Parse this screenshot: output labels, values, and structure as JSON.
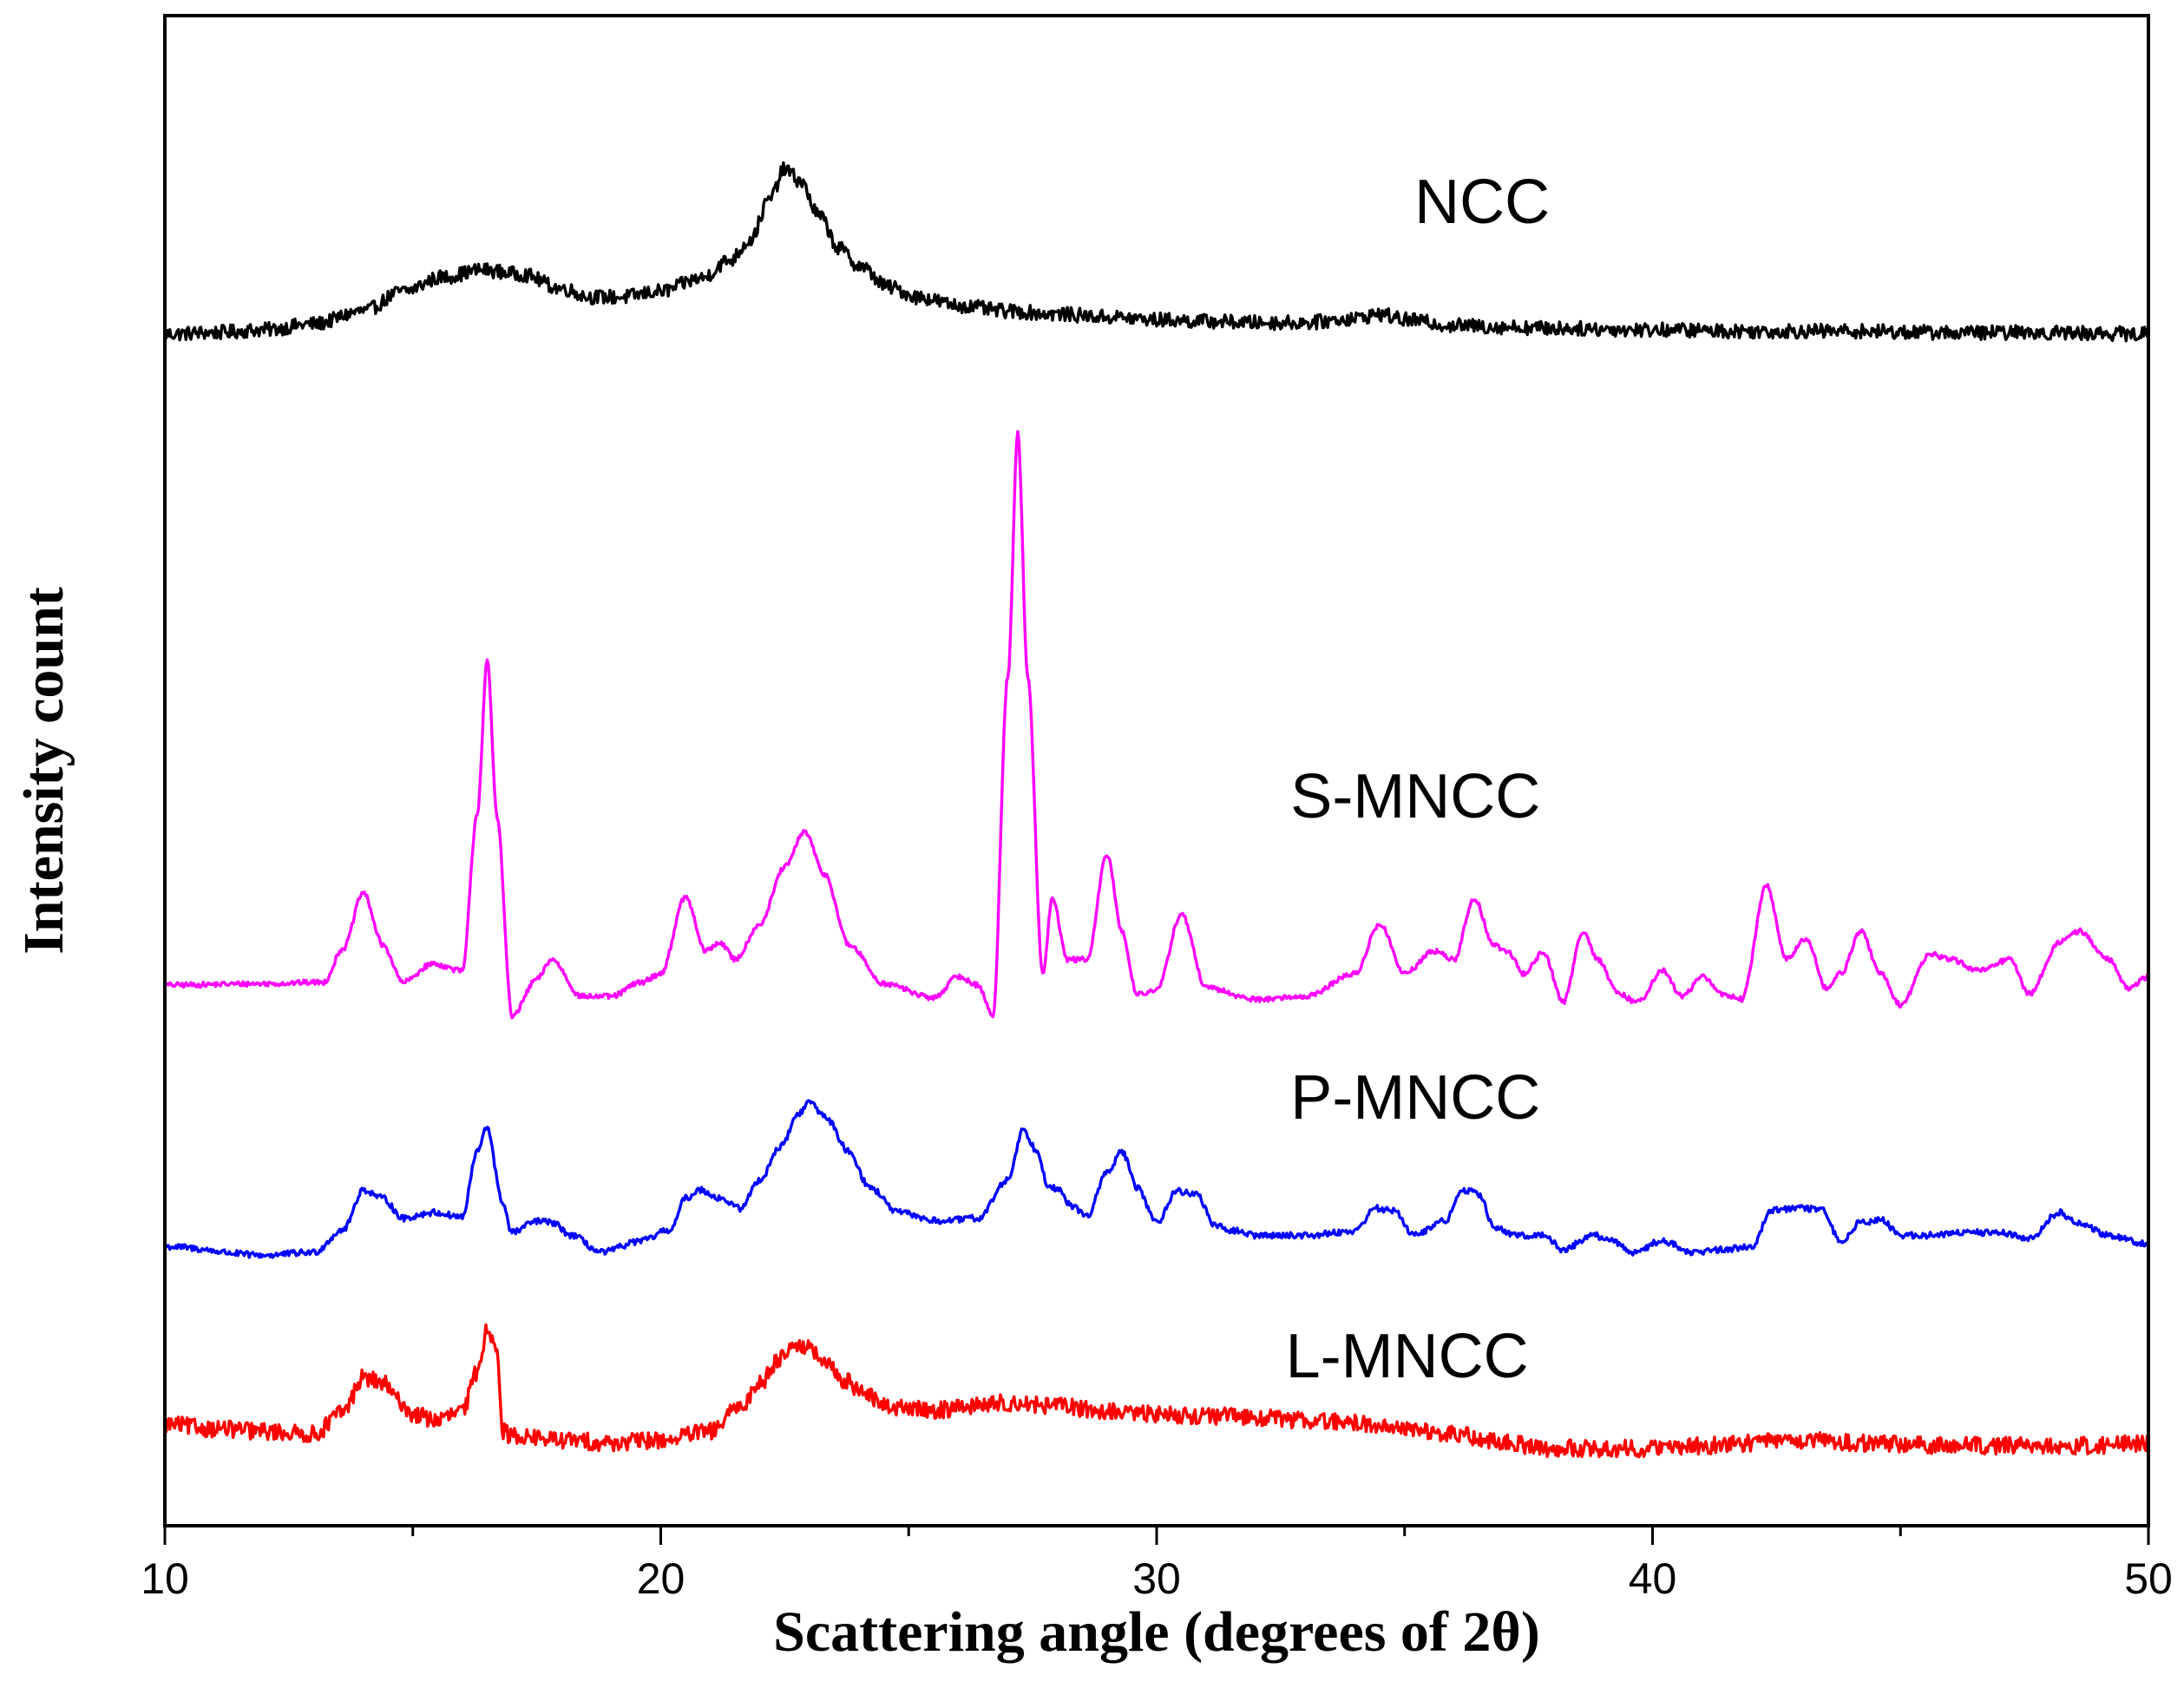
{
  "chart_data": {
    "type": "line",
    "title": "",
    "xlabel": "Scattering angle (degrees of 2θ)",
    "ylabel": "Intensity count",
    "xlim": [
      10,
      50
    ],
    "ylim": [
      0,
      100
    ],
    "x_ticks": [
      10,
      20,
      30,
      40,
      50
    ],
    "x_ticks_labeled": [
      "10",
      "20",
      "30",
      "40",
      "50"
    ],
    "x_minor_step": 5,
    "y_ticks": [],
    "grid": false,
    "legend": "none; series labeled inline",
    "series": [
      {
        "name": "NCC",
        "color": "#000000",
        "label_pos": [
          35.2,
          89.8
        ],
        "noise": 0.5,
        "x": [
          10.0,
          11.0,
          12.0,
          13.0,
          14.0,
          14.8,
          15.6,
          16.4,
          17.2,
          18.0,
          18.6,
          19.2,
          20.0,
          20.8,
          21.4,
          21.8,
          22.2,
          22.5,
          22.8,
          23.2,
          23.6,
          24.0,
          24.6,
          25.2,
          26.0,
          27.0,
          28.0,
          29.0,
          30.0,
          31.0,
          32.0,
          33.0,
          34.0,
          34.5,
          35.0,
          36.0,
          37.0,
          38.0,
          40.0,
          42.0,
          44.0,
          46.0,
          48.0,
          50.0
        ],
        "y": [
          82.0,
          82.1,
          82.3,
          82.7,
          83.6,
          85.0,
          86.0,
          86.5,
          86.2,
          85.2,
          84.6,
          84.6,
          85.0,
          85.9,
          87.2,
          88.6,
          91.5,
          93.6,
          92.8,
          90.3,
          88.0,
          86.8,
          85.3,
          84.6,
          84.0,
          83.6,
          83.4,
          83.2,
          83.0,
          82.9,
          82.8,
          82.8,
          83.1,
          83.4,
          83.0,
          82.6,
          82.5,
          82.4,
          82.3,
          82.2,
          82.2,
          82.1,
          82.1,
          82.0
        ]
      },
      {
        "name": "S-MNCC",
        "color": "#ff00ff",
        "label_pos": [
          32.7,
          48.0
        ],
        "noise": 0.18,
        "x": [
          10.0,
          12.0,
          13.2,
          13.6,
          14.0,
          14.4,
          14.8,
          15.4,
          16.0,
          16.3,
          16.5,
          16.7,
          17.0,
          17.5,
          17.8,
          18.4,
          19.0,
          19.6,
          20.0,
          20.5,
          20.9,
          21.2,
          21.5,
          22.0,
          22.5,
          22.9,
          23.3,
          23.8,
          24.5,
          25.5,
          26.0,
          26.4,
          26.7,
          27.0,
          27.2,
          27.4,
          27.7,
          27.9,
          28.2,
          28.6,
          29.0,
          29.3,
          29.6,
          30.0,
          30.5,
          31.0,
          32.0,
          33.0,
          34.0,
          34.5,
          35.0,
          35.6,
          36.0,
          36.4,
          36.8,
          37.1,
          37.4,
          37.8,
          38.2,
          38.6,
          38.9,
          39.3,
          39.7,
          40.2,
          40.6,
          41.0,
          41.4,
          41.8,
          42.3,
          42.7,
          43.1,
          43.5,
          43.8,
          44.2,
          44.6,
          45.0,
          45.6,
          46.0,
          46.6,
          47.2,
          47.6,
          48.2,
          48.6,
          49.2,
          49.6,
          50.0
        ],
        "y": [
          36.2,
          36.3,
          36.4,
          38.8,
          42.7,
          39.0,
          36.4,
          37.7,
          37.2,
          48.3,
          59.0,
          48.0,
          34.0,
          36.6,
          38.0,
          35.4,
          35.4,
          36.4,
          37.0,
          42.4,
          38.6,
          39.2,
          38.0,
          40.5,
          44.5,
          47.0,
          44.0,
          39.0,
          36.3,
          35.3,
          36.8,
          36.2,
          34.0,
          58.0,
          75.0,
          58.0,
          37.0,
          42.3,
          38.0,
          38.0,
          45.4,
          40.0,
          35.6,
          35.8,
          41.2,
          36.0,
          35.2,
          35.4,
          37.0,
          40.5,
          37.0,
          38.6,
          38.0,
          42.3,
          39.0,
          38.5,
          37.0,
          38.5,
          35.0,
          40.0,
          38.0,
          35.6,
          35.0,
          37.2,
          35.4,
          36.8,
          35.6,
          35.2,
          43.2,
          38.0,
          39.5,
          36.0,
          37.0,
          40.0,
          37.0,
          34.8,
          38.4,
          38.0,
          37.2,
          38.0,
          35.6,
          39.2,
          40.0,
          38.0,
          36.0,
          36.8
        ]
      },
      {
        "name": "P-MNCC",
        "color": "#0000ff",
        "label_pos": [
          32.7,
          26.8
        ],
        "noise": 0.22,
        "x": [
          10.0,
          12.0,
          13.0,
          13.6,
          14.0,
          14.4,
          14.8,
          15.4,
          16.0,
          16.3,
          16.5,
          16.8,
          17.0,
          17.5,
          17.8,
          18.2,
          18.8,
          19.6,
          20.2,
          20.5,
          20.8,
          21.2,
          21.6,
          22.0,
          22.4,
          22.8,
          23.0,
          23.3,
          23.8,
          24.2,
          24.8,
          25.6,
          26.4,
          27.0,
          27.3,
          27.6,
          27.8,
          28.0,
          28.3,
          28.6,
          29.0,
          29.3,
          29.6,
          30.0,
          30.4,
          30.8,
          31.2,
          31.6,
          32.0,
          33.0,
          34.0,
          34.4,
          34.8,
          35.2,
          35.8,
          36.2,
          36.5,
          36.8,
          37.2,
          37.8,
          38.2,
          38.8,
          39.2,
          39.6,
          40.2,
          40.8,
          41.4,
          42.0,
          42.4,
          43.0,
          43.4,
          43.8,
          44.2,
          44.6,
          45.0,
          45.6,
          46.2,
          47.0,
          47.6,
          48.2,
          48.6,
          49.2,
          50.0
        ],
        "y": [
          17.8,
          17.2,
          17.4,
          19.0,
          21.8,
          21.2,
          19.8,
          20.2,
          19.9,
          24.5,
          26.2,
          21.0,
          18.8,
          19.6,
          19.5,
          18.6,
          17.4,
          18.2,
          19.0,
          21.2,
          21.8,
          21.2,
          20.5,
          22.5,
          24.8,
          27.2,
          28.0,
          27.0,
          24.5,
          22.0,
          20.2,
          19.6,
          19.8,
          22.5,
          26.0,
          24.5,
          22.2,
          21.8,
          20.6,
          20.0,
          23.0,
          24.5,
          22.0,
          19.5,
          21.7,
          21.5,
          19.2,
          18.9,
          18.6,
          18.6,
          18.9,
          20.5,
          20.3,
          18.6,
          19.6,
          21.8,
          21.5,
          19.2,
          18.6,
          18.6,
          17.6,
          18.6,
          18.2,
          17.4,
          18.2,
          17.4,
          17.6,
          17.8,
          20.4,
          20.5,
          20.4,
          18.2,
          19.5,
          19.7,
          18.6,
          18.6,
          18.8,
          18.8,
          18.4,
          20.2,
          19.4,
          18.6,
          18.0
        ]
      },
      {
        "name": "L-MNCC",
        "color": "#ff0000",
        "label_pos": [
          32.6,
          8.6
        ],
        "noise": 0.6,
        "x": [
          10.0,
          11.0,
          12.0,
          13.0,
          13.6,
          14.0,
          14.4,
          14.7,
          15.0,
          15.5,
          16.0,
          16.3,
          16.5,
          16.7,
          16.8,
          17.0,
          18.0,
          19.0,
          20.0,
          21.0,
          21.6,
          22.0,
          22.4,
          22.7,
          23.0,
          23.3,
          23.7,
          24.0,
          24.5,
          25.0,
          25.6,
          26.2,
          27.0,
          28.0,
          29.0,
          30.0,
          31.0,
          32.0,
          33.0,
          34.0,
          35.0,
          36.0,
          37.0,
          38.0,
          39.0,
          40.0,
          41.0,
          42.0,
          43.0,
          44.0,
          45.0,
          46.0,
          47.0,
          48.0,
          49.0,
          50.0
        ],
        "y": [
          5.3,
          5.0,
          4.8,
          4.6,
          6.2,
          8.6,
          8.2,
          7.0,
          6.0,
          5.6,
          6.2,
          9.0,
          12.0,
          11.0,
          4.8,
          4.5,
          4.2,
          4.0,
          4.2,
          4.8,
          6.5,
          8.2,
          10.0,
          11.0,
          10.6,
          9.6,
          8.4,
          7.8,
          6.6,
          6.4,
          6.3,
          6.6,
          6.8,
          6.6,
          6.2,
          6.0,
          5.9,
          5.8,
          5.6,
          5.4,
          5.0,
          4.6,
          4.0,
          3.6,
          3.6,
          3.6,
          3.8,
          4.0,
          4.2,
          4.0,
          3.9,
          3.8,
          3.8,
          3.8,
          3.8,
          4.0
        ]
      }
    ]
  }
}
